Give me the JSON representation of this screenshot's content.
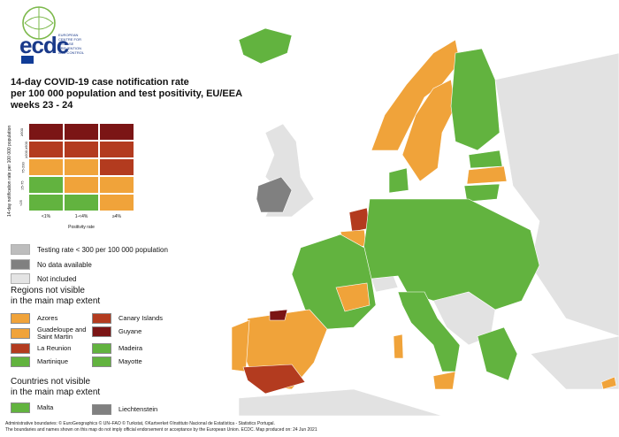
{
  "header": {
    "logo_text": "ecdc",
    "logo_subtitle": "EUROPEAN CENTRE FOR DISEASE PREVENTION AND CONTROL",
    "title_lines": [
      "14-day COVID-19 case notification rate",
      "per 100 000 population and test positivity, EU/EEA",
      "weeks 23 - 24"
    ]
  },
  "matrix": {
    "y_label": "14-day notification rate per 100 000 population",
    "y_ticks": [
      "≥500",
      "≥200 ≥500",
      "75-200",
      "25-75",
      "<25"
    ],
    "x_label": "Positivity rate",
    "x_ticks": [
      "<1%",
      "1-<4%",
      "≥4%"
    ],
    "colors": [
      [
        "#7b1515",
        "#7b1515",
        "#7b1515"
      ],
      [
        "#b33b1f",
        "#b33b1f",
        "#b33b1f"
      ],
      [
        "#f0a33a",
        "#f0a33a",
        "#b33b1f"
      ],
      [
        "#62b33f",
        "#f0a33a",
        "#f0a33a"
      ],
      [
        "#62b33f",
        "#62b33f",
        "#f0a33a"
      ]
    ]
  },
  "legend": {
    "items": [
      {
        "label": "Testing rate < 300 per 100 000 population",
        "color": "#bdbdbd"
      },
      {
        "label": "No data available",
        "color": "#808080"
      },
      {
        "label": "Not included",
        "color": "#e4e4e4"
      }
    ],
    "regions_heading": [
      "Regions not visible",
      "in the main map extent"
    ],
    "regions": [
      {
        "label": "Azores",
        "color": "#f0a33a"
      },
      {
        "label": "Canary Islands",
        "color": "#b33b1f"
      },
      {
        "label": "Guadeloupe and Saint Martin",
        "color": "#f0a33a"
      },
      {
        "label": "Guyane",
        "color": "#7b1515"
      },
      {
        "label": "La Reunion",
        "color": "#b33b1f"
      },
      {
        "label": "Madeira",
        "color": "#62b33f"
      },
      {
        "label": "Martinique",
        "color": "#62b33f"
      },
      {
        "label": "Mayotte",
        "color": "#62b33f"
      }
    ],
    "countries_heading": [
      "Countries not visible",
      "in the main map extent"
    ],
    "countries": [
      {
        "label": "Malta",
        "color": "#62b33f"
      },
      {
        "label": "Liechtenstein",
        "color": "#808080"
      }
    ]
  },
  "footer": {
    "line1": "Administrative boundaries: © EuroGeographics © UN–FAO © Turkstat, ©Kartverket ©Instituto Nacional de Estatística - Statistics Portugal.",
    "line2": "The boundaries and names shown on this map do not imply official endorsement or acceptance by the European Union. ECDC. Map produced on: 24 Jun 2021"
  },
  "colors": {
    "green": "#62b33f",
    "orange": "#f0a33a",
    "red": "#b33b1f",
    "darkred": "#7b1515",
    "grey_not_included": "#e4e4e4",
    "grey_nodata": "#808080",
    "water": "#ffffff"
  }
}
